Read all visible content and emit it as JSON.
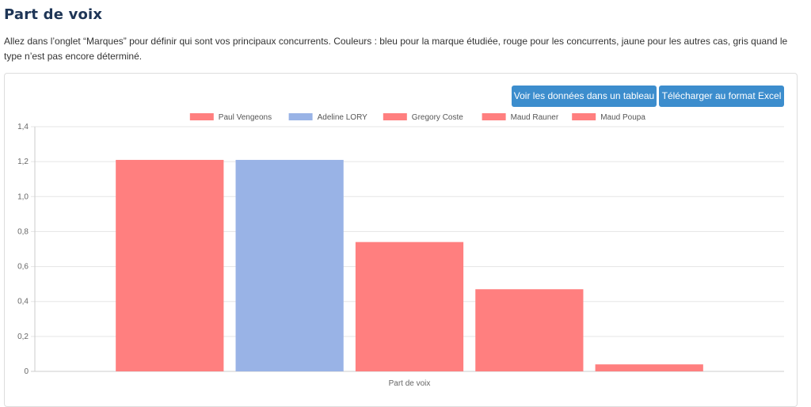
{
  "page": {
    "title": "Part de voix",
    "description": "Allez dans l’onglet “Marques” pour définir qui sont vos principaux concurrents. Couleurs : bleu pour la marque étudiée, rouge pour les concurrents, jaune pour les autres cas, gris quand le type n’est pas encore déterminé."
  },
  "toolbar": {
    "table_label": "Voir les données dans un tableau",
    "excel_label": "Télécharger au format Excel"
  },
  "colors": {
    "competitor": "#ff7f7f",
    "studied_brand": "#99b3e6",
    "button": "#3c8dcd",
    "title": "#1e3556"
  },
  "chart_data": {
    "type": "bar",
    "categories": [
      "Part de voix"
    ],
    "xlabel": "Part de voix",
    "ylabel": "",
    "ylim": [
      0,
      1.4
    ],
    "yticks": [
      "0",
      "0,2",
      "0,4",
      "0,6",
      "0,8",
      "1,0",
      "1,2",
      "1,4"
    ],
    "grid": true,
    "legend_position": "top",
    "series": [
      {
        "name": "Paul Vengeons",
        "values": [
          1.21
        ],
        "color": "#ff7f7f"
      },
      {
        "name": "Adeline LORY",
        "values": [
          1.21
        ],
        "color": "#99b3e6"
      },
      {
        "name": "Gregory Coste",
        "values": [
          0.74
        ],
        "color": "#ff7f7f"
      },
      {
        "name": "Maud Rauner",
        "values": [
          0.47
        ],
        "color": "#ff7f7f"
      },
      {
        "name": "Maud Poupa",
        "values": [
          0.04
        ],
        "color": "#ff7f7f"
      }
    ]
  }
}
